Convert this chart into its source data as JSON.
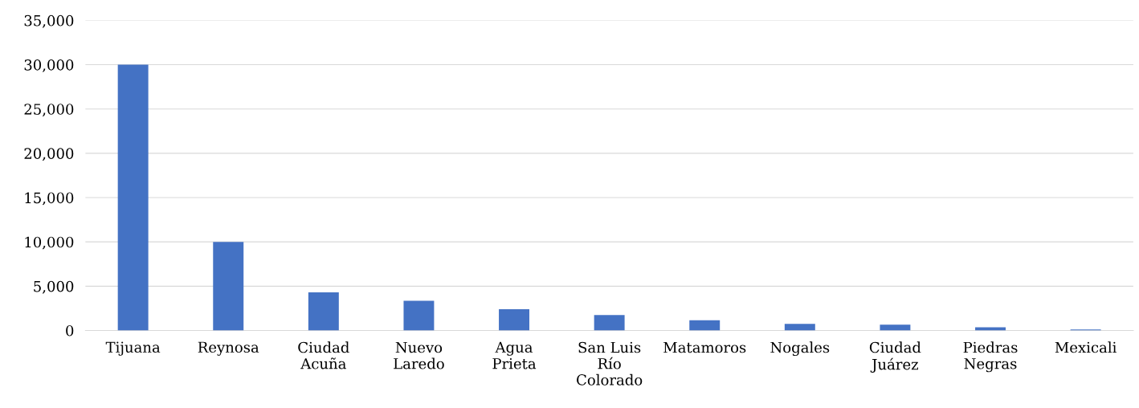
{
  "chart_data": {
    "type": "bar",
    "categories": [
      "Tijuana",
      "Reynosa",
      "Ciudad\nAcuña",
      "Nuevo\nLaredo",
      "Agua\nPrieta",
      "San Luis\nRío\nColorado",
      "Matamoros",
      "Nogales",
      "Ciudad\nJuárez",
      "Piedras\nNegras",
      "Mexicali"
    ],
    "values": [
      30000,
      10000,
      4300,
      3350,
      2400,
      1750,
      1150,
      750,
      650,
      350,
      120
    ],
    "color": "#4472c4",
    "ylim": [
      0,
      35000
    ],
    "yticks": [
      {
        "value": 0,
        "label": "0"
      },
      {
        "value": 5000,
        "label": "5,000"
      },
      {
        "value": 10000,
        "label": "10,000"
      },
      {
        "value": 15000,
        "label": "15,000"
      },
      {
        "value": 20000,
        "label": "20,000"
      },
      {
        "value": 25000,
        "label": "25,000"
      },
      {
        "value": 30000,
        "label": "30,000"
      },
      {
        "value": 35000,
        "label": "35,000"
      }
    ],
    "grid": "y",
    "legend": false
  }
}
